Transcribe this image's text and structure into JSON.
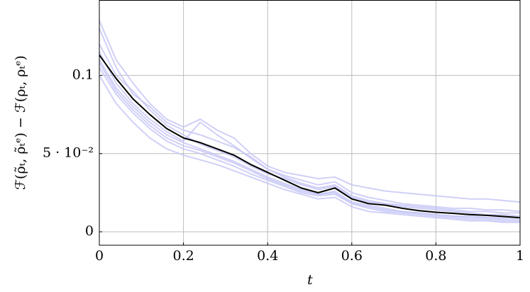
{
  "chart_data": {
    "type": "line",
    "x_label": "t",
    "y_label": "ℱ(ρ̃ₜ, ρ̃ₜᵉ) − ℱ(ρₜ, ρₜᵉ)",
    "x": [
      0,
      0.04,
      0.08,
      0.12,
      0.16,
      0.2,
      0.24,
      0.28,
      0.32,
      0.36,
      0.4,
      0.44,
      0.48,
      0.52,
      0.56,
      0.6,
      0.64,
      0.68,
      0.72,
      0.76,
      0.8,
      0.84,
      0.88,
      0.92,
      0.96,
      1
    ],
    "series": [
      {
        "color": "#c4c4f6",
        "values": [
          0.135,
          0.11,
          0.095,
          0.082,
          0.072,
          0.067,
          0.072,
          0.065,
          0.06,
          0.05,
          0.042,
          0.038,
          0.036,
          0.034,
          0.035,
          0.03,
          0.028,
          0.026,
          0.025,
          0.024,
          0.023,
          0.022,
          0.021,
          0.021,
          0.02,
          0.019
        ]
      },
      {
        "color": "#c4c4f6",
        "values": [
          0.13,
          0.105,
          0.088,
          0.08,
          0.07,
          0.065,
          0.062,
          0.058,
          0.054,
          0.048,
          0.04,
          0.036,
          0.033,
          0.03,
          0.032,
          0.025,
          0.022,
          0.02,
          0.018,
          0.017,
          0.016,
          0.015,
          0.015,
          0.014,
          0.014,
          0.013
        ]
      },
      {
        "color": "#c4c4f6",
        "values": [
          0.12,
          0.1,
          0.09,
          0.078,
          0.068,
          0.062,
          0.056,
          0.052,
          0.048,
          0.042,
          0.037,
          0.034,
          0.03,
          0.027,
          0.029,
          0.022,
          0.019,
          0.018,
          0.016,
          0.015,
          0.014,
          0.013,
          0.012,
          0.011,
          0.011,
          0.01
        ]
      },
      {
        "color": "#c4c4f6",
        "values": [
          0.115,
          0.095,
          0.082,
          0.072,
          0.064,
          0.058,
          0.07,
          0.062,
          0.055,
          0.047,
          0.04,
          0.035,
          0.031,
          0.028,
          0.03,
          0.023,
          0.02,
          0.018,
          0.017,
          0.016,
          0.015,
          0.014,
          0.013,
          0.013,
          0.012,
          0.012
        ]
      },
      {
        "color": "#c4c4f6",
        "values": [
          0.11,
          0.092,
          0.08,
          0.07,
          0.062,
          0.057,
          0.053,
          0.049,
          0.045,
          0.04,
          0.035,
          0.031,
          0.027,
          0.024,
          0.026,
          0.019,
          0.017,
          0.015,
          0.013,
          0.012,
          0.011,
          0.01,
          0.009,
          0.009,
          0.008,
          0.008
        ]
      },
      {
        "color": "#c4c4f6",
        "values": [
          0.105,
          0.088,
          0.076,
          0.066,
          0.058,
          0.053,
          0.05,
          0.046,
          0.042,
          0.037,
          0.033,
          0.029,
          0.025,
          0.023,
          0.024,
          0.018,
          0.015,
          0.013,
          0.012,
          0.011,
          0.01,
          0.009,
          0.008,
          0.008,
          0.007,
          0.007
        ]
      },
      {
        "color": "#c4c4f6",
        "values": [
          0.1,
          0.082,
          0.07,
          0.06,
          0.053,
          0.049,
          0.046,
          0.043,
          0.039,
          0.035,
          0.031,
          0.027,
          0.024,
          0.021,
          0.022,
          0.016,
          0.013,
          0.012,
          0.011,
          0.01,
          0.009,
          0.008,
          0.007,
          0.007,
          0.006,
          0.006
        ]
      },
      {
        "color": "#c4c4f6",
        "values": [
          0.108,
          0.09,
          0.078,
          0.068,
          0.06,
          0.055,
          0.052,
          0.048,
          0.044,
          0.039,
          0.034,
          0.03,
          0.026,
          0.024,
          0.025,
          0.018,
          0.016,
          0.014,
          0.013,
          0.012,
          0.011,
          0.01,
          0.01,
          0.009,
          0.009,
          0.009
        ]
      },
      {
        "color": "#000000",
        "values": [
          0.113,
          0.098,
          0.085,
          0.075,
          0.066,
          0.06,
          0.057,
          0.053,
          0.049,
          0.043,
          0.038,
          0.033,
          0.028,
          0.025,
          0.028,
          0.021,
          0.018,
          0.017,
          0.015,
          0.0135,
          0.0125,
          0.0118,
          0.011,
          0.0105,
          0.0098,
          0.009
        ]
      }
    ],
    "xlim": [
      0,
      1
    ],
    "ylim": [
      -0.0086,
      0.148
    ],
    "xticks": [
      0,
      0.2,
      0.4,
      0.6,
      0.8,
      1
    ],
    "yticks": [
      0,
      {
        "value": 0.05,
        "label": "5 · 10⁻²"
      },
      0.1
    ],
    "grid": true
  }
}
